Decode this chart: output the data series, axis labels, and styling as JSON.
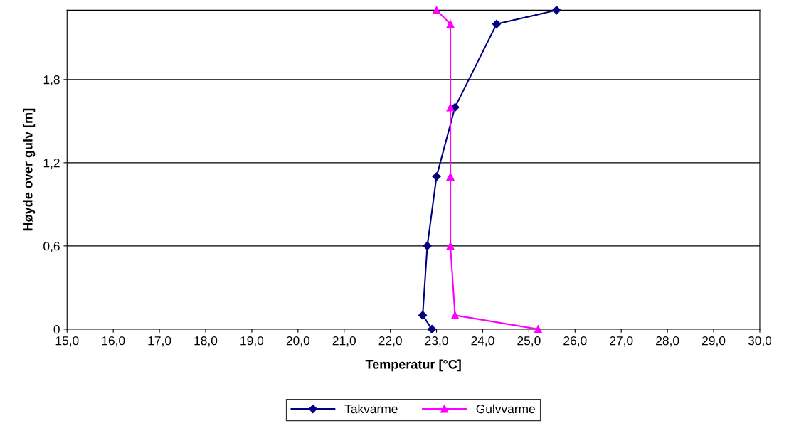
{
  "chart_data": {
    "type": "line",
    "xlabel": "Temperatur [°C]",
    "ylabel": "Høyde over gulv [m]",
    "xlim": [
      15,
      30
    ],
    "ylim": [
      0,
      2.3
    ],
    "xticks": [
      {
        "value": 15,
        "label": "15,0"
      },
      {
        "value": 16,
        "label": "16,0"
      },
      {
        "value": 17,
        "label": "17,0"
      },
      {
        "value": 18,
        "label": "18,0"
      },
      {
        "value": 19,
        "label": "19,0"
      },
      {
        "value": 20,
        "label": "20,0"
      },
      {
        "value": 21,
        "label": "21,0"
      },
      {
        "value": 22,
        "label": "22,0"
      },
      {
        "value": 23,
        "label": "23,0"
      },
      {
        "value": 24,
        "label": "24,0"
      },
      {
        "value": 25,
        "label": "25,0"
      },
      {
        "value": 26,
        "label": "26,0"
      },
      {
        "value": 27,
        "label": "27,0"
      },
      {
        "value": 28,
        "label": "28,0"
      },
      {
        "value": 29,
        "label": "29,0"
      },
      {
        "value": 30,
        "label": "30,0"
      }
    ],
    "yticks": [
      0,
      {
        "value": 0.6,
        "label": "0,6"
      },
      {
        "value": 1.2,
        "label": "1,2"
      },
      {
        "value": 1.8,
        "label": "1,8"
      }
    ],
    "grid": "y",
    "legend": "bottom",
    "series": [
      {
        "name": "Takvarme",
        "color": "#000080",
        "marker": "diamond",
        "x": [
          22.9,
          22.7,
          22.8,
          23.0,
          23.4,
          24.3,
          25.6
        ],
        "values": [
          0,
          0.1,
          0.6,
          1.1,
          1.6,
          2.2,
          2.3
        ]
      },
      {
        "name": "Gulvvarme",
        "color": "#ff00ff",
        "marker": "triangle",
        "x": [
          25.2,
          23.4,
          23.3,
          23.3,
          23.3,
          23.3,
          23.0
        ],
        "values": [
          0,
          0.1,
          0.6,
          1.1,
          1.6,
          2.2,
          2.3
        ]
      }
    ]
  }
}
